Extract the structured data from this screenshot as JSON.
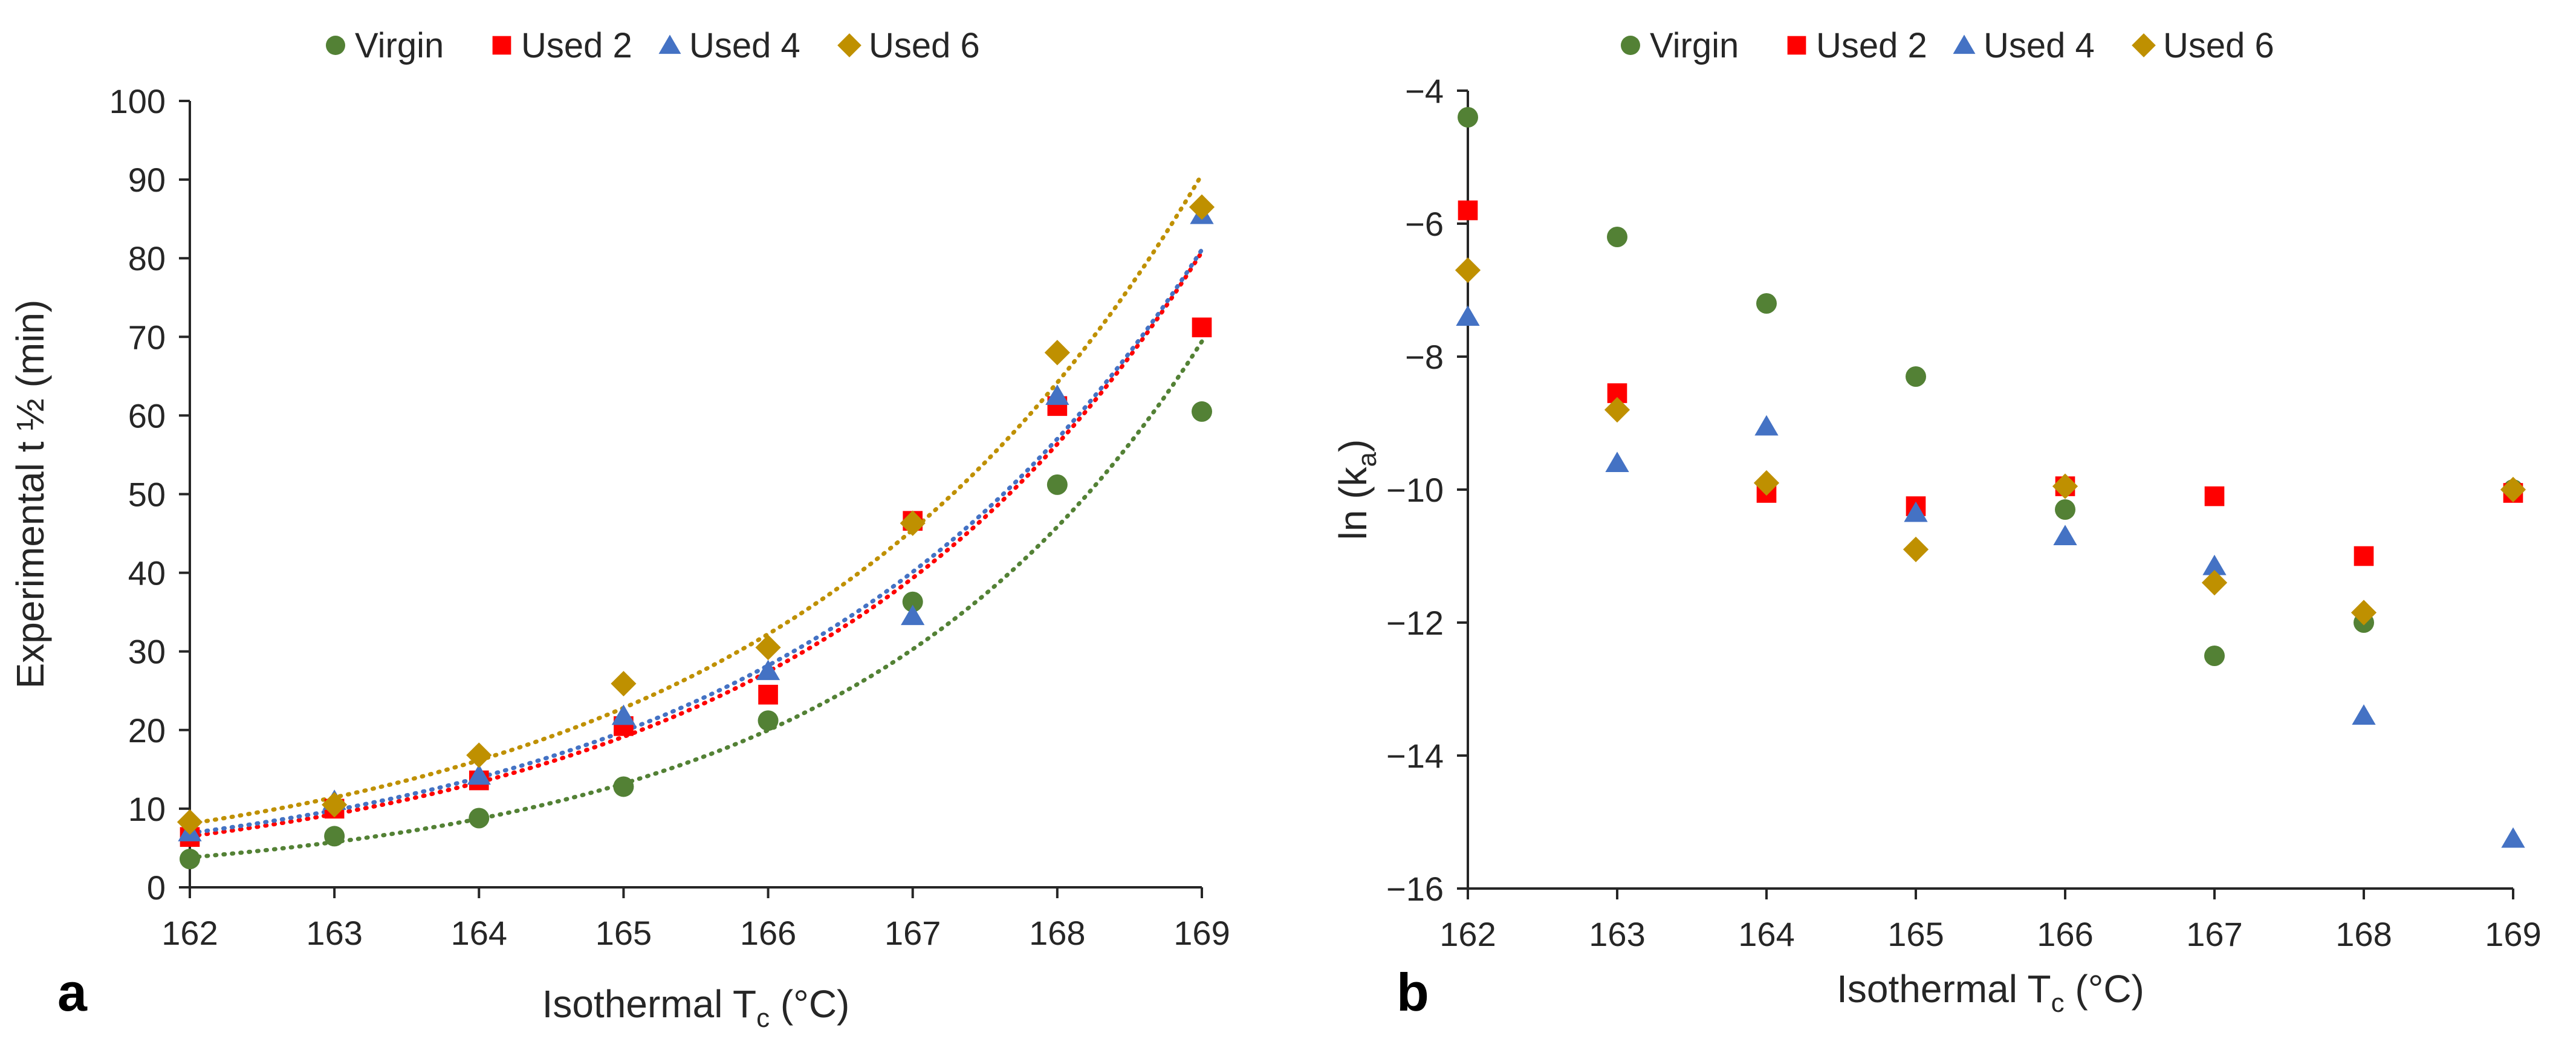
{
  "chart_data": [
    {
      "type": "scatter",
      "panel_label": "a",
      "xlabel_main": "Isothermal T",
      "xlabel_sub": "c",
      "xlabel_tail": " (°C)",
      "ylabel": "Experimental t ½  (min)",
      "xlim": [
        162,
        169
      ],
      "ylim": [
        0,
        100
      ],
      "x_ticks": [
        162,
        163,
        164,
        165,
        166,
        167,
        168,
        169
      ],
      "y_ticks": [
        0,
        10,
        20,
        30,
        40,
        50,
        60,
        70,
        80,
        90,
        100
      ],
      "grid": false,
      "legend_position": "top",
      "x": [
        162,
        163,
        164,
        165,
        166,
        167,
        168,
        169
      ],
      "series": [
        {
          "name": "Virgin",
          "marker": "circle",
          "color": "#538135",
          "values": [
            3.6,
            6.5,
            8.8,
            12.8,
            21.2,
            36.3,
            51.2,
            60.5
          ],
          "trend": {
            "type": "exponential",
            "a": 3.8,
            "b": 0.415
          }
        },
        {
          "name": "Used 2",
          "marker": "square",
          "color": "#ff0000",
          "values": [
            6.4,
            10.0,
            13.6,
            20.5,
            24.5,
            46.6,
            61.2,
            71.2
          ],
          "trend": {
            "type": "exponential",
            "a": 6.5,
            "b": 0.36
          }
        },
        {
          "name": "Used 4",
          "marker": "triangle",
          "color": "#4472c4",
          "values": [
            7.0,
            11.0,
            14.2,
            21.8,
            27.5,
            34.5,
            62.5,
            85.5
          ],
          "trend": {
            "type": "exponential",
            "a": 6.9,
            "b": 0.352
          }
        },
        {
          "name": "Used 6",
          "marker": "diamond",
          "color": "#bf9000",
          "values": [
            8.3,
            10.5,
            16.8,
            25.9,
            30.5,
            46.3,
            68.0,
            86.5
          ],
          "trend": {
            "type": "exponential",
            "a": 8.1,
            "b": 0.345
          }
        }
      ]
    },
    {
      "type": "scatter",
      "panel_label": "b",
      "xlabel_main": "Isothermal T",
      "xlabel_sub": "c",
      "xlabel_tail": " (°C)",
      "ylabel_main": "ln (k",
      "ylabel_sub": "a",
      "ylabel_tail": ")",
      "xlim": [
        162,
        169
      ],
      "ylim": [
        -16,
        -4
      ],
      "x_ticks": [
        162,
        163,
        164,
        165,
        166,
        167,
        168,
        169
      ],
      "y_ticks": [
        -16,
        -14,
        -12,
        -10,
        -8,
        -6,
        -4
      ],
      "y_tick_labels": [
        "−16",
        "−14",
        "−12",
        "−10",
        "−8",
        "−6",
        "−4"
      ],
      "grid": false,
      "legend_position": "top",
      "x": [
        162,
        163,
        164,
        165,
        166,
        167,
        168,
        169
      ],
      "series": [
        {
          "name": "Virgin",
          "marker": "circle",
          "color": "#538135",
          "values": [
            -4.4,
            -6.2,
            -7.2,
            -8.3,
            -10.3,
            -12.5,
            -12.0,
            -10.0
          ]
        },
        {
          "name": "Used 2",
          "marker": "square",
          "color": "#ff0000",
          "values": [
            -5.8,
            -8.55,
            -10.05,
            -10.25,
            -9.95,
            -10.1,
            -11.0,
            -10.05
          ]
        },
        {
          "name": "Used 4",
          "marker": "triangle",
          "color": "#4472c4",
          "values": [
            -7.4,
            -9.6,
            -9.05,
            -10.35,
            -10.7,
            -11.15,
            -13.4,
            -15.25
          ]
        },
        {
          "name": "Used 6",
          "marker": "diamond",
          "color": "#bf9000",
          "values": [
            -6.7,
            -8.8,
            -9.9,
            -10.9,
            -9.95,
            -11.4,
            -11.85,
            -10.0
          ]
        }
      ]
    }
  ]
}
